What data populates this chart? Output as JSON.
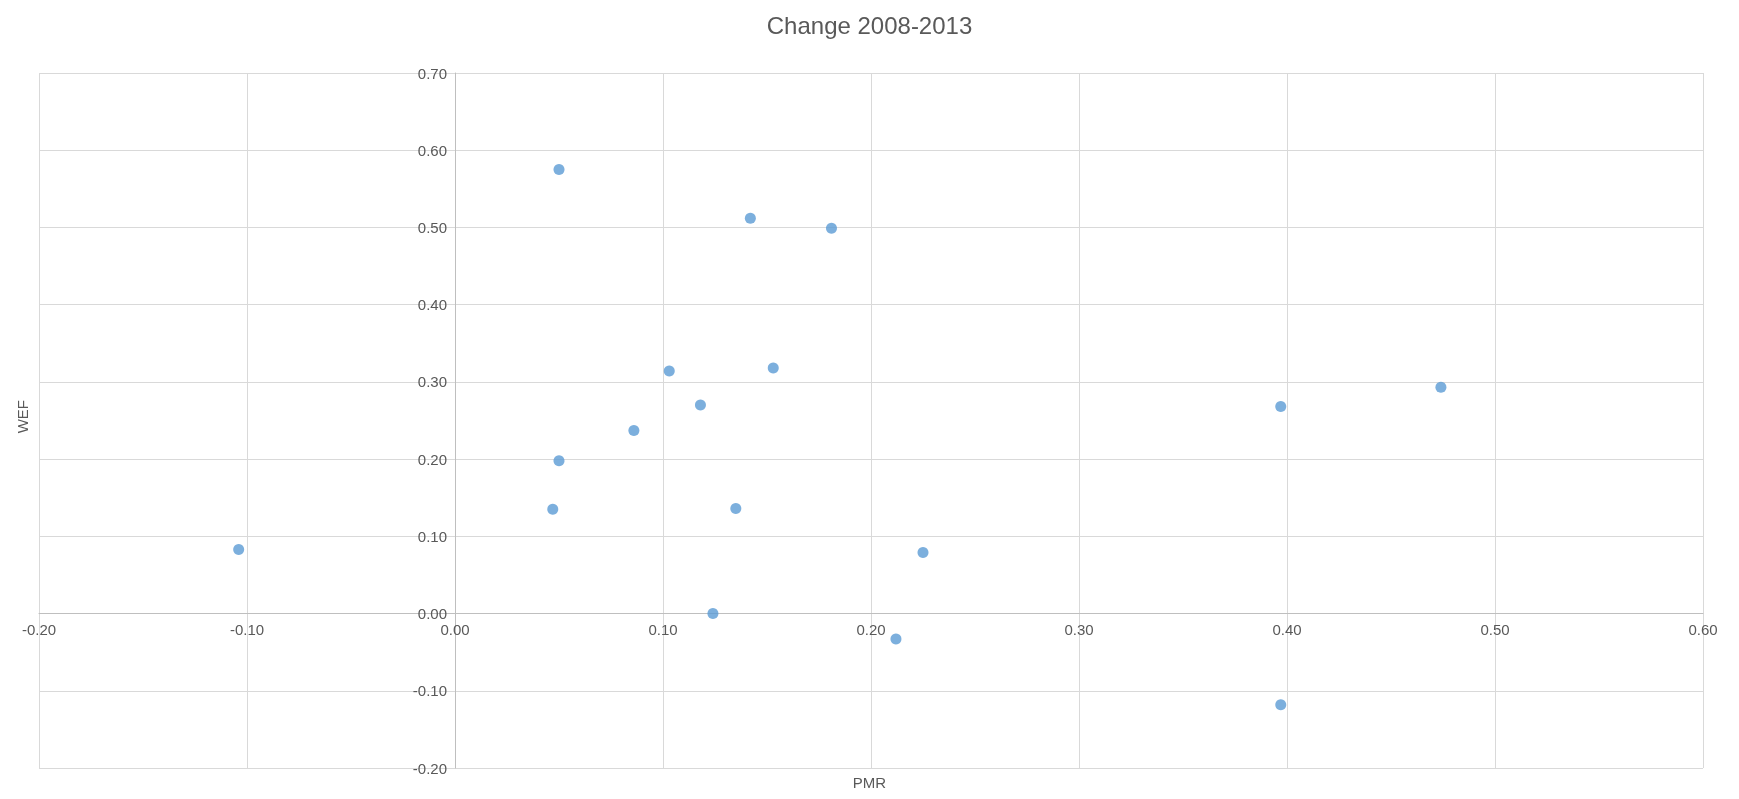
{
  "chart_data": {
    "type": "scatter",
    "title": "Change 2008-2013",
    "xlabel": "PMR",
    "ylabel": "WEF",
    "x": [
      0.05,
      0.142,
      0.181,
      0.103,
      0.153,
      0.118,
      0.086,
      0.05,
      0.047,
      0.135,
      -0.104,
      0.225,
      0.124,
      0.212,
      0.397,
      0.474,
      0.397
    ],
    "series": [
      {
        "color": "#5b9bd5",
        "values": [
          0.575,
          0.512,
          0.499,
          0.314,
          0.318,
          0.27,
          0.237,
          0.198,
          0.135,
          0.136,
          0.083,
          0.079,
          0.0,
          -0.033,
          0.268,
          0.293,
          -0.118
        ]
      }
    ],
    "xlim": [
      -0.2,
      0.6
    ],
    "xticks": [
      {
        "value": -0.2,
        "label": "-0.20"
      },
      {
        "value": -0.1,
        "label": "-0.10"
      },
      {
        "value": 0,
        "label": "0.00"
      },
      {
        "value": 0.1,
        "label": "0.10"
      },
      {
        "value": 0.2,
        "label": "0.20"
      },
      {
        "value": 0.3,
        "label": "0.30"
      },
      {
        "value": 0.4,
        "label": "0.40"
      },
      {
        "value": 0.5,
        "label": "0.50"
      },
      {
        "value": 0.6,
        "label": "0.60"
      }
    ],
    "ylim": [
      -0.2,
      0.7
    ],
    "yticks": [
      {
        "value": -0.2,
        "label": "-0.20"
      },
      {
        "value": -0.1,
        "label": "-0.10"
      },
      {
        "value": 0,
        "label": "0.00"
      },
      {
        "value": 0.1,
        "label": "0.10"
      },
      {
        "value": 0.2,
        "label": "0.20"
      },
      {
        "value": 0.3,
        "label": "0.30"
      },
      {
        "value": 0.4,
        "label": "0.40"
      },
      {
        "value": 0.5,
        "label": "0.50"
      },
      {
        "value": 0.6,
        "label": "0.60"
      },
      {
        "value": 0.7,
        "label": "0.70"
      }
    ],
    "grid": true,
    "marker": "circle"
  }
}
